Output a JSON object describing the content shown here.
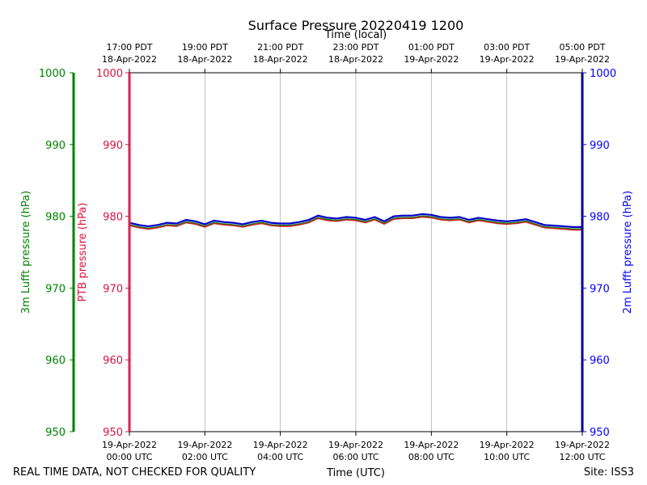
{
  "chart_data": {
    "type": "line",
    "title": "Surface Pressure 20220419 1200",
    "xlabel_bottom": "Time (UTC)",
    "xlabel_top": "Time (local)",
    "ylabel_left_outer": "3m Lufft pressure (hPa)",
    "ylabel_left_inner": "PTB pressure (hPa)",
    "ylabel_right": "2m Lufft pressure (hPa)",
    "ylim": [
      950,
      1000
    ],
    "yticks": [
      950,
      960,
      970,
      980,
      990,
      1000
    ],
    "x_hours_range": [
      0,
      12
    ],
    "x_ticks_bottom": [
      {
        "h": 0,
        "l1": "19-Apr-2022",
        "l2": "00:00 UTC"
      },
      {
        "h": 2,
        "l1": "19-Apr-2022",
        "l2": "02:00 UTC"
      },
      {
        "h": 4,
        "l1": "19-Apr-2022",
        "l2": "04:00 UTC"
      },
      {
        "h": 6,
        "l1": "19-Apr-2022",
        "l2": "06:00 UTC"
      },
      {
        "h": 8,
        "l1": "19-Apr-2022",
        "l2": "08:00 UTC"
      },
      {
        "h": 10,
        "l1": "19-Apr-2022",
        "l2": "10:00 UTC"
      },
      {
        "h": 12,
        "l1": "19-Apr-2022",
        "l2": "12:00 UTC"
      }
    ],
    "x_ticks_top": [
      {
        "h": 0,
        "l1": "17:00 PDT",
        "l2": "18-Apr-2022"
      },
      {
        "h": 2,
        "l1": "19:00 PDT",
        "l2": "18-Apr-2022"
      },
      {
        "h": 4,
        "l1": "21:00 PDT",
        "l2": "18-Apr-2022"
      },
      {
        "h": 6,
        "l1": "23:00 PDT",
        "l2": "18-Apr-2022"
      },
      {
        "h": 8,
        "l1": "01:00 PDT",
        "l2": "19-Apr-2022"
      },
      {
        "h": 10,
        "l1": "03:00 PDT",
        "l2": "19-Apr-2022"
      },
      {
        "h": 12,
        "l1": "05:00 PDT",
        "l2": "19-Apr-2022"
      }
    ],
    "grid": "vertical",
    "colors": {
      "lufft3m": "#008000",
      "ptb": "#dc143c",
      "lufft2m": "#0000ff",
      "ptb_line": "#cc2020",
      "lufft3m_line": "#1e7a1e",
      "lufft2m_line": "#0000cc",
      "left_axis_line": "#e0204a",
      "right_axis_line": "#00008b"
    },
    "series": [
      {
        "key": "lufft2m",
        "x": [
          0,
          0.25,
          0.5,
          0.75,
          1,
          1.25,
          1.5,
          1.75,
          2,
          2.25,
          2.5,
          2.75,
          3,
          3.25,
          3.5,
          3.75,
          4,
          4.25,
          4.5,
          4.75,
          5,
          5.25,
          5.5,
          5.75,
          6,
          6.25,
          6.5,
          6.75,
          7,
          7.25,
          7.5,
          7.75,
          8,
          8.25,
          8.5,
          8.75,
          9,
          9.25,
          9.5,
          9.75,
          10,
          10.25,
          10.5,
          10.75,
          11,
          11.25,
          11.5,
          11.75,
          12
        ],
        "y": [
          979.1,
          978.8,
          978.6,
          978.8,
          979.1,
          979.0,
          979.5,
          979.3,
          978.9,
          979.4,
          979.2,
          979.1,
          978.9,
          979.2,
          979.4,
          979.1,
          979.0,
          979.0,
          979.2,
          979.5,
          980.1,
          979.8,
          979.7,
          979.9,
          979.8,
          979.5,
          979.9,
          979.3,
          980.0,
          980.1,
          980.1,
          980.3,
          980.2,
          979.9,
          979.8,
          979.9,
          979.5,
          979.8,
          979.6,
          979.4,
          979.3,
          979.4,
          979.6,
          979.2,
          978.8,
          978.7,
          978.6,
          978.5,
          978.5
        ]
      },
      {
        "key": "lufft3m",
        "x": [
          0,
          0.25,
          0.5,
          0.75,
          1,
          1.25,
          1.5,
          1.75,
          2,
          2.25,
          2.5,
          2.75,
          3,
          3.25,
          3.5,
          3.75,
          4,
          4.25,
          4.5,
          4.75,
          5,
          5.25,
          5.5,
          5.75,
          6,
          6.25,
          6.5,
          6.75,
          7,
          7.25,
          7.5,
          7.75,
          8,
          8.25,
          8.5,
          8.75,
          9,
          9.25,
          9.5,
          9.75,
          10,
          10.25,
          10.5,
          10.75,
          11,
          11.25,
          11.5,
          11.75,
          12
        ],
        "y": [
          978.8,
          978.5,
          978.3,
          978.5,
          978.8,
          978.7,
          979.2,
          979.0,
          978.6,
          979.1,
          978.9,
          978.8,
          978.6,
          978.9,
          979.1,
          978.8,
          978.7,
          978.7,
          978.9,
          979.2,
          979.8,
          979.5,
          979.4,
          979.6,
          979.5,
          979.2,
          979.6,
          979.0,
          979.7,
          979.8,
          979.8,
          980.0,
          979.9,
          979.6,
          979.5,
          979.6,
          979.2,
          979.5,
          979.3,
          979.1,
          979.0,
          979.1,
          979.3,
          978.9,
          978.5,
          978.4,
          978.3,
          978.2,
          978.2
        ]
      },
      {
        "key": "ptb",
        "x": [
          0,
          0.25,
          0.5,
          0.75,
          1,
          1.25,
          1.5,
          1.75,
          2,
          2.25,
          2.5,
          2.75,
          3,
          3.25,
          3.5,
          3.75,
          4,
          4.25,
          4.5,
          4.75,
          5,
          5.25,
          5.5,
          5.75,
          6,
          6.25,
          6.5,
          6.75,
          7,
          7.25,
          7.5,
          7.75,
          8,
          8.25,
          8.5,
          8.75,
          9,
          9.25,
          9.5,
          9.75,
          10,
          10.25,
          10.5,
          10.75,
          11,
          11.25,
          11.5,
          11.75,
          12
        ],
        "y": [
          978.7,
          978.4,
          978.2,
          978.4,
          978.7,
          978.6,
          979.1,
          978.9,
          978.5,
          979.0,
          978.8,
          978.7,
          978.5,
          978.8,
          979.0,
          978.7,
          978.6,
          978.6,
          978.8,
          979.1,
          979.7,
          979.4,
          979.3,
          979.5,
          979.4,
          979.1,
          979.5,
          978.9,
          979.6,
          979.7,
          979.7,
          979.9,
          979.8,
          979.5,
          979.4,
          979.5,
          979.1,
          979.4,
          979.2,
          979.0,
          978.9,
          979.0,
          979.2,
          978.8,
          978.4,
          978.3,
          978.2,
          978.1,
          978.1
        ]
      }
    ]
  },
  "footer": {
    "disclaimer": "REAL TIME DATA, NOT CHECKED FOR QUALITY",
    "site": "Site: ISS3"
  }
}
